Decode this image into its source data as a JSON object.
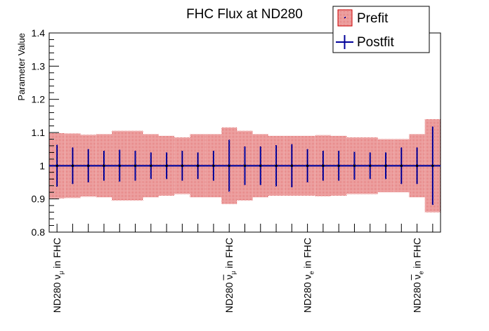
{
  "chart_data": {
    "type": "scatter",
    "title": "FHC Flux at ND280",
    "xlabel": "",
    "ylabel": "Parameter Value",
    "ylim": [
      0.8,
      1.4
    ],
    "yticks": [
      0.8,
      0.9,
      1.0,
      1.1,
      1.2,
      1.3,
      1.4
    ],
    "ytick_labels": [
      "0.8",
      "0.9",
      "1",
      "1.1",
      "1.2",
      "1.3",
      "1.4"
    ],
    "n_bins": 25,
    "bin_labels": [
      {
        "bin": 1,
        "text": "ND280 ν_μ in FHC",
        "main": "ND280 ν",
        "sub": "μ",
        "suffix": " in FHC",
        "bar": false
      },
      {
        "bin": 12,
        "text": "ND280 ν̄_μ in FHC",
        "main": "ND280 ν",
        "sub": "μ",
        "suffix": " in FHC",
        "bar": true
      },
      {
        "bin": 17,
        "text": "ND280 ν_e in FHC",
        "main": "ND280 ν",
        "sub": "e",
        "suffix": " in FHC",
        "bar": false
      },
      {
        "bin": 24,
        "text": "ND280 ν̄_e in FHC",
        "main": "ND280 ν",
        "sub": "e",
        "suffix": " in FHC",
        "bar": true
      }
    ],
    "legend": {
      "placement": "top-right",
      "entries": [
        "Prefit",
        "Postfit"
      ]
    },
    "series": [
      {
        "name": "Prefit",
        "kind": "band",
        "color": "#cc0000",
        "values": [
          1.0,
          1.0,
          1.0,
          1.0,
          1.0,
          1.0,
          1.0,
          1.0,
          1.0,
          1.0,
          1.0,
          1.0,
          1.0,
          1.0,
          1.0,
          1.0,
          1.0,
          1.0,
          1.0,
          1.0,
          1.0,
          1.0,
          1.0,
          1.0,
          1.0
        ],
        "errors": [
          0.098,
          0.097,
          0.093,
          0.095,
          0.105,
          0.105,
          0.095,
          0.09,
          0.085,
          0.095,
          0.095,
          0.115,
          0.105,
          0.095,
          0.09,
          0.09,
          0.09,
          0.092,
          0.09,
          0.085,
          0.085,
          0.08,
          0.08,
          0.095,
          0.14
        ]
      },
      {
        "name": "Postfit",
        "kind": "points",
        "color": "#000099",
        "values": [
          1.0,
          1.0,
          1.0,
          1.0,
          1.0,
          1.0,
          1.0,
          1.0,
          1.0,
          1.0,
          1.0,
          1.0,
          1.0,
          1.0,
          1.0,
          1.0,
          1.0,
          1.0,
          1.0,
          1.0,
          1.0,
          1.0,
          1.0,
          1.0,
          1.0
        ],
        "errors": [
          0.063,
          0.055,
          0.05,
          0.045,
          0.048,
          0.045,
          0.04,
          0.04,
          0.045,
          0.04,
          0.045,
          0.078,
          0.058,
          0.058,
          0.062,
          0.065,
          0.05,
          0.045,
          0.045,
          0.042,
          0.04,
          0.04,
          0.055,
          0.055,
          0.118
        ]
      }
    ]
  }
}
